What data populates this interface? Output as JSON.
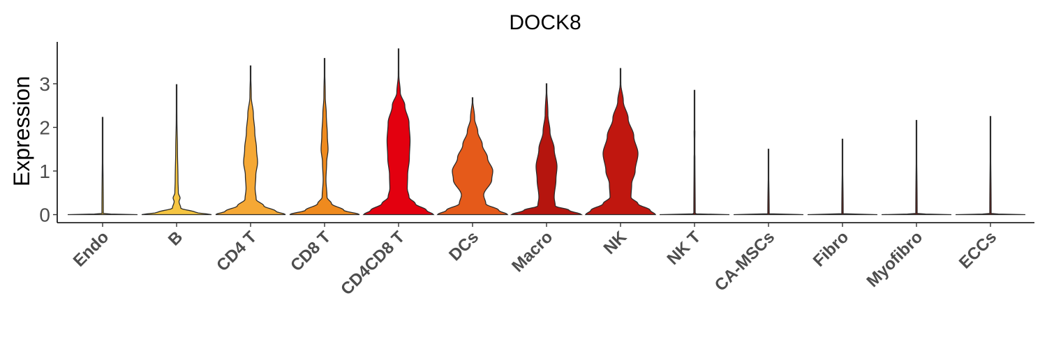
{
  "chart_data": {
    "type": "violin",
    "title": "DOCK8",
    "xlabel": "",
    "ylabel": "Expression",
    "ylim": [
      -0.2,
      3.9
    ],
    "yticks": [
      "0",
      "1",
      "2",
      "3"
    ],
    "legend": "none",
    "grid": false,
    "categories": [
      "Endo",
      "B",
      "CD4 T",
      "CD8 T",
      "CD4CD8 T",
      "DCs",
      "Macro",
      "NK",
      "NK T",
      "CA-MSCs",
      "Fibro",
      "Myofibro",
      "ECCs"
    ],
    "colors": [
      "#f0c13c",
      "#f5c542",
      "#f5a835",
      "#ef8a1e",
      "#e3000f",
      "#e55a1a",
      "#b5150e",
      "#c0170f",
      "#7a1a10",
      "#7a1a10",
      "#7a1a10",
      "#7a1a10",
      "#7a1a10"
    ],
    "series": [
      {
        "category": "Endo",
        "max": 2.23,
        "profile": [
          [
            0,
            1.0
          ],
          [
            0.02,
            0.02
          ],
          [
            2.23,
            0
          ]
        ]
      },
      {
        "category": "B",
        "max": 2.98,
        "profile": [
          [
            0,
            1.0
          ],
          [
            0.05,
            0.55
          ],
          [
            0.15,
            0.12
          ],
          [
            0.3,
            0.07
          ],
          [
            0.38,
            0.1
          ],
          [
            0.5,
            0.05
          ],
          [
            0.8,
            0.04
          ],
          [
            1.5,
            0.025
          ],
          [
            2.2,
            0.01
          ],
          [
            2.98,
            0
          ]
        ]
      },
      {
        "category": "CD4 T",
        "max": 3.41,
        "profile": [
          [
            0,
            1.0
          ],
          [
            0.08,
            0.72
          ],
          [
            0.2,
            0.38
          ],
          [
            0.35,
            0.16
          ],
          [
            0.6,
            0.13
          ],
          [
            0.9,
            0.15
          ],
          [
            1.2,
            0.2
          ],
          [
            1.5,
            0.17
          ],
          [
            1.9,
            0.12
          ],
          [
            2.3,
            0.08
          ],
          [
            2.7,
            0.02
          ],
          [
            3.41,
            0
          ]
        ]
      },
      {
        "category": "CD8 T",
        "max": 3.58,
        "profile": [
          [
            0,
            1.0
          ],
          [
            0.1,
            0.55
          ],
          [
            0.25,
            0.2
          ],
          [
            0.4,
            0.07
          ],
          [
            0.8,
            0.04
          ],
          [
            1.2,
            0.06
          ],
          [
            1.5,
            0.1
          ],
          [
            1.8,
            0.08
          ],
          [
            2.3,
            0.05
          ],
          [
            2.7,
            0.02
          ],
          [
            3.58,
            0
          ]
        ]
      },
      {
        "category": "CD4CD8 T",
        "max": 3.8,
        "profile": [
          [
            0,
            1.0
          ],
          [
            0.1,
            0.8
          ],
          [
            0.25,
            0.48
          ],
          [
            0.4,
            0.3
          ],
          [
            0.6,
            0.25
          ],
          [
            0.9,
            0.26
          ],
          [
            1.3,
            0.31
          ],
          [
            1.7,
            0.33
          ],
          [
            2.1,
            0.3
          ],
          [
            2.5,
            0.18
          ],
          [
            2.8,
            0.05
          ],
          [
            3.2,
            0.01
          ],
          [
            3.8,
            0
          ]
        ]
      },
      {
        "category": "DCs",
        "max": 2.68,
        "profile": [
          [
            0,
            1.0
          ],
          [
            0.1,
            0.75
          ],
          [
            0.25,
            0.38
          ],
          [
            0.45,
            0.32
          ],
          [
            0.8,
            0.55
          ],
          [
            1.0,
            0.58
          ],
          [
            1.3,
            0.43
          ],
          [
            1.6,
            0.28
          ],
          [
            1.9,
            0.15
          ],
          [
            2.2,
            0.06
          ],
          [
            2.68,
            0
          ]
        ]
      },
      {
        "category": "Macro",
        "max": 3.0,
        "profile": [
          [
            0,
            1.0
          ],
          [
            0.1,
            0.65
          ],
          [
            0.2,
            0.25
          ],
          [
            0.4,
            0.22
          ],
          [
            0.8,
            0.27
          ],
          [
            1.1,
            0.3
          ],
          [
            1.5,
            0.22
          ],
          [
            1.9,
            0.1
          ],
          [
            2.3,
            0.04
          ],
          [
            3.0,
            0
          ]
        ]
      },
      {
        "category": "NK",
        "max": 3.35,
        "profile": [
          [
            0,
            1.0
          ],
          [
            0.1,
            0.85
          ],
          [
            0.25,
            0.5
          ],
          [
            0.4,
            0.3
          ],
          [
            0.7,
            0.32
          ],
          [
            1.0,
            0.42
          ],
          [
            1.4,
            0.5
          ],
          [
            1.8,
            0.38
          ],
          [
            2.2,
            0.22
          ],
          [
            2.6,
            0.08
          ],
          [
            3.0,
            0.01
          ],
          [
            3.35,
            0
          ]
        ]
      },
      {
        "category": "NK T",
        "max": 2.85,
        "profile": [
          [
            0,
            1.0
          ],
          [
            0.02,
            0.02
          ],
          [
            1.3,
            0.012
          ],
          [
            1.5,
            0.004
          ],
          [
            1.9,
            0.012
          ],
          [
            2.0,
            0.004
          ],
          [
            2.85,
            0
          ]
        ]
      },
      {
        "category": "CA-MSCs",
        "max": 1.5,
        "profile": [
          [
            0,
            1.0
          ],
          [
            0.02,
            0.02
          ],
          [
            1.5,
            0
          ]
        ]
      },
      {
        "category": "Fibro",
        "max": 1.73,
        "profile": [
          [
            0,
            1.0
          ],
          [
            0.02,
            0.02
          ],
          [
            1.73,
            0
          ]
        ]
      },
      {
        "category": "Myofibro",
        "max": 2.16,
        "profile": [
          [
            0,
            1.0
          ],
          [
            0.02,
            0.02
          ],
          [
            2.16,
            0
          ]
        ]
      },
      {
        "category": "ECCs",
        "max": 2.25,
        "profile": [
          [
            0,
            1.0
          ],
          [
            0.02,
            0.02
          ],
          [
            2.25,
            0
          ]
        ]
      }
    ]
  }
}
